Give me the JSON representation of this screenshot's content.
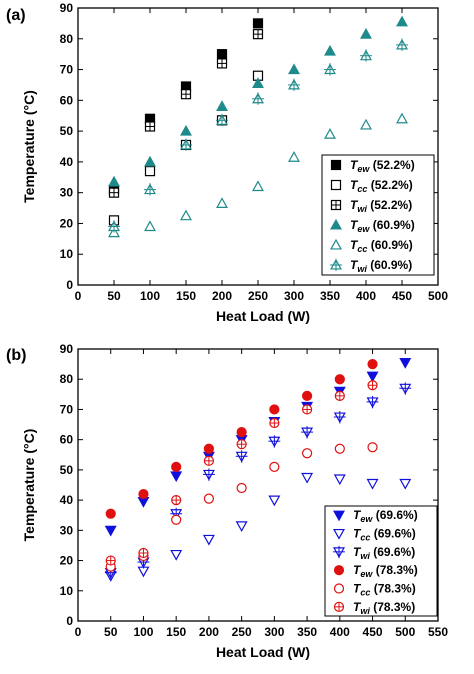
{
  "chart_data": [
    {
      "type": "scatter",
      "panel_label": "(a)",
      "xlabel": "Heat Load (W)",
      "ylabel": "Temperature (°C)",
      "xlim": [
        0,
        500
      ],
      "ylim": [
        0,
        90
      ],
      "xticks": [
        0,
        50,
        100,
        150,
        200,
        250,
        300,
        350,
        400,
        450,
        500
      ],
      "yticks": [
        0,
        10,
        20,
        30,
        40,
        50,
        60,
        70,
        80,
        90
      ],
      "legend_position": "bottom-right",
      "series": [
        {
          "name": "Tew",
          "pct": "(52.2%)",
          "marker": "square-filled",
          "color": "#000000",
          "x": [
            50,
            100,
            150,
            200,
            250
          ],
          "y": [
            31,
            54,
            64.5,
            75,
            85
          ]
        },
        {
          "name": "Tcc",
          "pct": "(52.2%)",
          "marker": "square-open",
          "color": "#000000",
          "x": [
            50,
            100,
            150,
            200,
            250
          ],
          "y": [
            21,
            37,
            45.5,
            53.5,
            68
          ]
        },
        {
          "name": "Twi",
          "pct": "(52.2%)",
          "marker": "square-cross",
          "color": "#000000",
          "x": [
            50,
            100,
            150,
            200,
            250
          ],
          "y": [
            30,
            51.5,
            62,
            72,
            81.5
          ]
        },
        {
          "name": "Tew",
          "pct": "(60.9%)",
          "marker": "triangle-filled",
          "color": "#1f8a8a",
          "x": [
            50,
            100,
            150,
            200,
            250,
            300,
            350,
            400,
            450
          ],
          "y": [
            33.5,
            40,
            50,
            58,
            65.5,
            70,
            76,
            81.5,
            85.5
          ]
        },
        {
          "name": "Tcc",
          "pct": "(60.9%)",
          "marker": "triangle-open",
          "color": "#1f8a8a",
          "x": [
            50,
            100,
            150,
            200,
            250,
            300,
            350,
            400,
            450
          ],
          "y": [
            17,
            19,
            22.5,
            26.5,
            32,
            41.5,
            49,
            52,
            54
          ]
        },
        {
          "name": "Twi",
          "pct": "(60.9%)",
          "marker": "triangle-cross",
          "color": "#1f8a8a",
          "x": [
            50,
            100,
            150,
            200,
            250,
            300,
            350,
            400,
            450
          ],
          "y": [
            19,
            31,
            45.5,
            53.5,
            60.5,
            65,
            70,
            74.5,
            78
          ]
        }
      ]
    },
    {
      "type": "scatter",
      "panel_label": "(b)",
      "xlabel": "Heat Load (W)",
      "ylabel": "Temperature (°C)",
      "xlim": [
        0,
        550
      ],
      "ylim": [
        0,
        90
      ],
      "xticks": [
        0,
        50,
        100,
        150,
        200,
        250,
        300,
        350,
        400,
        450,
        500,
        550
      ],
      "yticks": [
        0,
        10,
        20,
        30,
        40,
        50,
        60,
        70,
        80,
        90
      ],
      "legend_position": "bottom-right",
      "series": [
        {
          "name": "Tew",
          "pct": "(69.6%)",
          "marker": "invtriangle-filled",
          "color": "#1010dd",
          "x": [
            50,
            100,
            150,
            200,
            250,
            300,
            350,
            400,
            450,
            500
          ],
          "y": [
            30,
            39.5,
            48,
            54.5,
            60,
            66,
            71,
            76,
            81,
            85.5
          ]
        },
        {
          "name": "Tcc",
          "pct": "(69.6%)",
          "marker": "invtriangle-open",
          "color": "#1010dd",
          "x": [
            50,
            100,
            150,
            200,
            250,
            300,
            350,
            400,
            450,
            500
          ],
          "y": [
            15,
            16.5,
            22,
            27,
            31.5,
            40,
            47.5,
            47,
            45.5,
            45.5
          ]
        },
        {
          "name": "Twi",
          "pct": "(69.6%)",
          "marker": "invtriangle-cross",
          "color": "#1010dd",
          "x": [
            50,
            100,
            150,
            200,
            250,
            300,
            350,
            400,
            450,
            500
          ],
          "y": [
            16,
            19.5,
            35.5,
            48.5,
            54.5,
            59.5,
            62.5,
            67.5,
            72.5,
            77
          ]
        },
        {
          "name": "Tew",
          "pct": "(78.3%)",
          "marker": "circle-filled",
          "color": "#e01010",
          "x": [
            50,
            100,
            150,
            200,
            250,
            300,
            350,
            400,
            450
          ],
          "y": [
            35.5,
            42,
            51,
            57,
            62.5,
            70,
            74.5,
            80,
            85
          ]
        },
        {
          "name": "Tcc",
          "pct": "(78.3%)",
          "marker": "circle-open",
          "color": "#e01010",
          "x": [
            50,
            100,
            150,
            200,
            250,
            300,
            350,
            400,
            450
          ],
          "y": [
            18,
            21.5,
            33.5,
            40.5,
            44,
            51,
            55.5,
            57,
            57.5
          ]
        },
        {
          "name": "Twi",
          "pct": "(78.3%)",
          "marker": "circle-cross",
          "color": "#e01010",
          "x": [
            50,
            100,
            150,
            200,
            250,
            300,
            350,
            400,
            450
          ],
          "y": [
            20,
            22.5,
            40,
            53,
            58.5,
            65.5,
            70,
            74.5,
            78
          ]
        }
      ]
    }
  ]
}
